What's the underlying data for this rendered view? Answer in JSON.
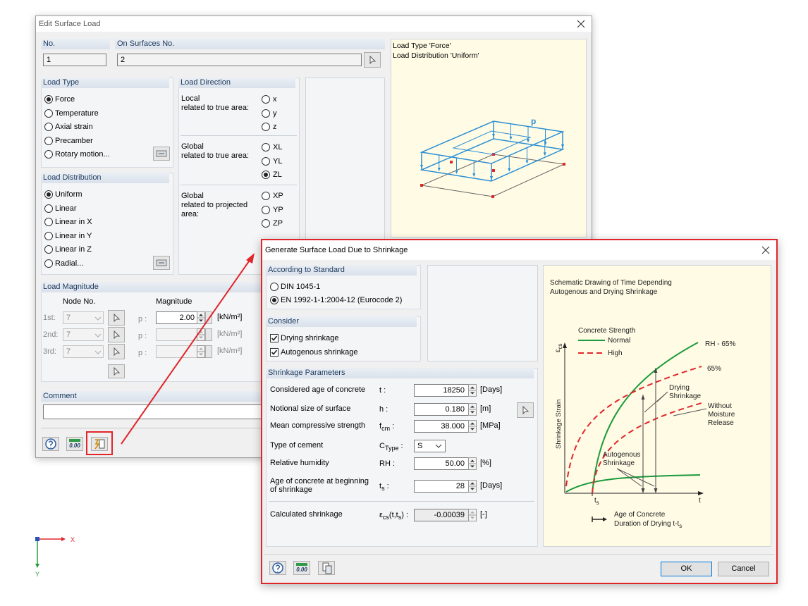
{
  "edit_dialog": {
    "title": "Edit Surface Load",
    "no": {
      "label": "No.",
      "value": "1"
    },
    "surfaces": {
      "label": "On Surfaces No.",
      "value": "2"
    },
    "preview": {
      "lines": [
        "Load Type 'Force'",
        "Load Distribution 'Uniform'"
      ],
      "load_symbol": "p"
    },
    "load_type": {
      "title": "Load Type",
      "options": [
        "Force",
        "Temperature",
        "Axial strain",
        "Precamber",
        "Rotary motion..."
      ],
      "selected": 0
    },
    "load_direction": {
      "title": "Load Direction",
      "groups": [
        {
          "label": [
            "Local",
            "related to true area:"
          ],
          "options": [
            "x",
            "y",
            "z"
          ]
        },
        {
          "label": [
            "Global",
            "related to true area:"
          ],
          "options": [
            "XL",
            "YL",
            "ZL"
          ]
        },
        {
          "label": [
            "Global",
            "related to projected",
            "area:"
          ],
          "options": [
            "XP",
            "YP",
            "ZP"
          ]
        }
      ],
      "selected_group": 1,
      "selected_option": 2
    },
    "load_distribution": {
      "title": "Load Distribution",
      "options": [
        "Uniform",
        "Linear",
        "Linear in X",
        "Linear in Y",
        "Linear in Z",
        "Radial..."
      ],
      "selected": 0
    },
    "load_magnitude": {
      "title": "Load Magnitude",
      "node_header": "Node No.",
      "magnitude_header": "Magnitude",
      "rows": [
        {
          "label": "1st:",
          "node": "7",
          "symbol": "p :",
          "value": "2.00",
          "unit": "[kN/m²]"
        },
        {
          "label": "2nd:",
          "node": "7",
          "symbol": "p :",
          "unit": "[kN/m²]"
        },
        {
          "label": "3rd:",
          "node": "7",
          "symbol": "p :",
          "unit": "[kN/m²]"
        }
      ]
    },
    "comment_label": "Comment",
    "calc_icon_text": "0.00"
  },
  "shrinkage_dialog": {
    "title": "Generate Surface Load Due to Shrinkage",
    "standard": {
      "title": "According to Standard",
      "options": [
        "DIN 1045-1",
        "EN 1992-1-1:2004-12 (Eurocode 2)"
      ],
      "selected": 1
    },
    "consider": {
      "title": "Consider",
      "options": [
        "Drying shrinkage",
        "Autogenous shrinkage"
      ],
      "checked": [
        true,
        true
      ]
    },
    "parameters": {
      "title": "Shrinkage Parameters",
      "rows": [
        {
          "label": [
            "Considered age of concrete"
          ],
          "symbol": [
            "t :"
          ],
          "value": "18250",
          "unit": "[Days]",
          "field": "spin"
        },
        {
          "label": [
            "Notional size of surface"
          ],
          "symbol": [
            "h :"
          ],
          "value": "0.180",
          "unit": "[m]",
          "field": "spin"
        },
        {
          "label": [
            "Mean compressive strength"
          ],
          "symbol": [
            "f",
            "cm",
            " :"
          ],
          "value": "38.000",
          "unit": "[MPa]",
          "field": "spin"
        },
        {
          "label": [
            "Type of cement"
          ],
          "symbol": [
            "C",
            "Type",
            " :"
          ],
          "value": "S",
          "field": "combo"
        },
        {
          "label": [
            "Relative humidity"
          ],
          "symbol": [
            "RH :"
          ],
          "value": "50.00",
          "unit": "[%]",
          "field": "spin"
        },
        {
          "label": [
            "Age of concrete at beginning",
            "of shrinkage"
          ],
          "symbol": [
            "t",
            "s",
            " :"
          ],
          "value": "28",
          "unit": "[Days]",
          "field": "spin"
        },
        {
          "label": [
            "Calculated shrinkage"
          ],
          "symbol": [
            "ε",
            "cs",
            "(t,t",
            "s",
            ") :"
          ],
          "value": "-0.00039",
          "unit": "[-]",
          "field": "readonly"
        }
      ]
    },
    "diagram": {
      "title": [
        "Schematic Drawing of Time Depending",
        "Autogenous and Drying Shrinkage"
      ],
      "legend_title": "Concrete Strength",
      "legend": [
        {
          "name": "Normal",
          "color": "#1a9b3c",
          "dash": false
        },
        {
          "name": "High",
          "color": "#e0262b",
          "dash": true
        }
      ],
      "y_symbol": [
        "ε",
        "cs"
      ],
      "y_label": "Shrinkage Strain",
      "x_ts": [
        "t",
        "s"
      ],
      "x_t": "t",
      "labels": {
        "rh": "RH - 65%",
        "p65": "65%",
        "drying": [
          "Drying",
          "Shrinkage"
        ],
        "without": [
          "Without",
          "Moisture",
          "Release"
        ],
        "autogenous": [
          "Autogenous",
          "Shrinkage"
        ]
      },
      "footer_line1": "Age of Concrete",
      "footer_line2": [
        "Duration of Drying t-t",
        "s"
      ]
    },
    "calc_icon_text": "0.00",
    "buttons": [
      "OK",
      "Cancel"
    ]
  },
  "coordinate_axes": {
    "x": "X",
    "y": "Y"
  }
}
